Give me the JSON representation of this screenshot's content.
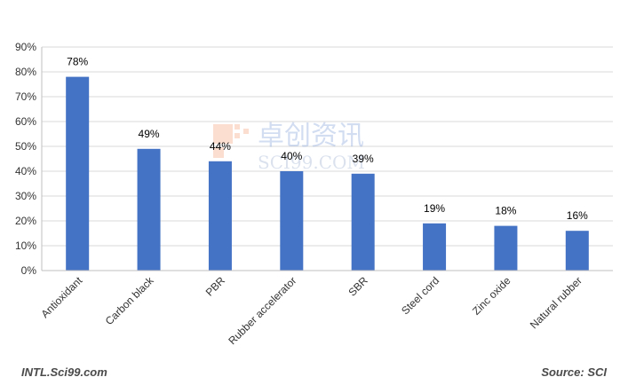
{
  "chart_data": {
    "type": "bar",
    "title": "",
    "xlabel": "",
    "ylabel": "",
    "categories": [
      "Antioxidant",
      "Carbon black",
      "PBR",
      "Rubber accelerator",
      "SBR",
      "Steel cord",
      "Zinc oxide",
      "Natural rubber"
    ],
    "values": [
      78,
      49,
      44,
      40,
      39,
      19,
      18,
      16
    ],
    "data_labels": [
      "78%",
      "49%",
      "44%",
      "40%",
      "39%",
      "19%",
      "18%",
      "16%"
    ],
    "ylim": [
      0,
      90
    ],
    "yticks": [
      0,
      10,
      20,
      30,
      40,
      50,
      60,
      70,
      80,
      90
    ],
    "ytick_labels": [
      "0%",
      "10%",
      "20%",
      "30%",
      "40%",
      "50%",
      "60%",
      "70%",
      "80%",
      "90%"
    ],
    "grid": true,
    "legend": "none",
    "bar_color": "#4472C4"
  },
  "watermark": {
    "chinese_text": "卓创资讯",
    "latin_text": "SCI99.COM"
  },
  "footer": {
    "left": "INTL.Sci99.com",
    "right": "Source: SCI"
  }
}
